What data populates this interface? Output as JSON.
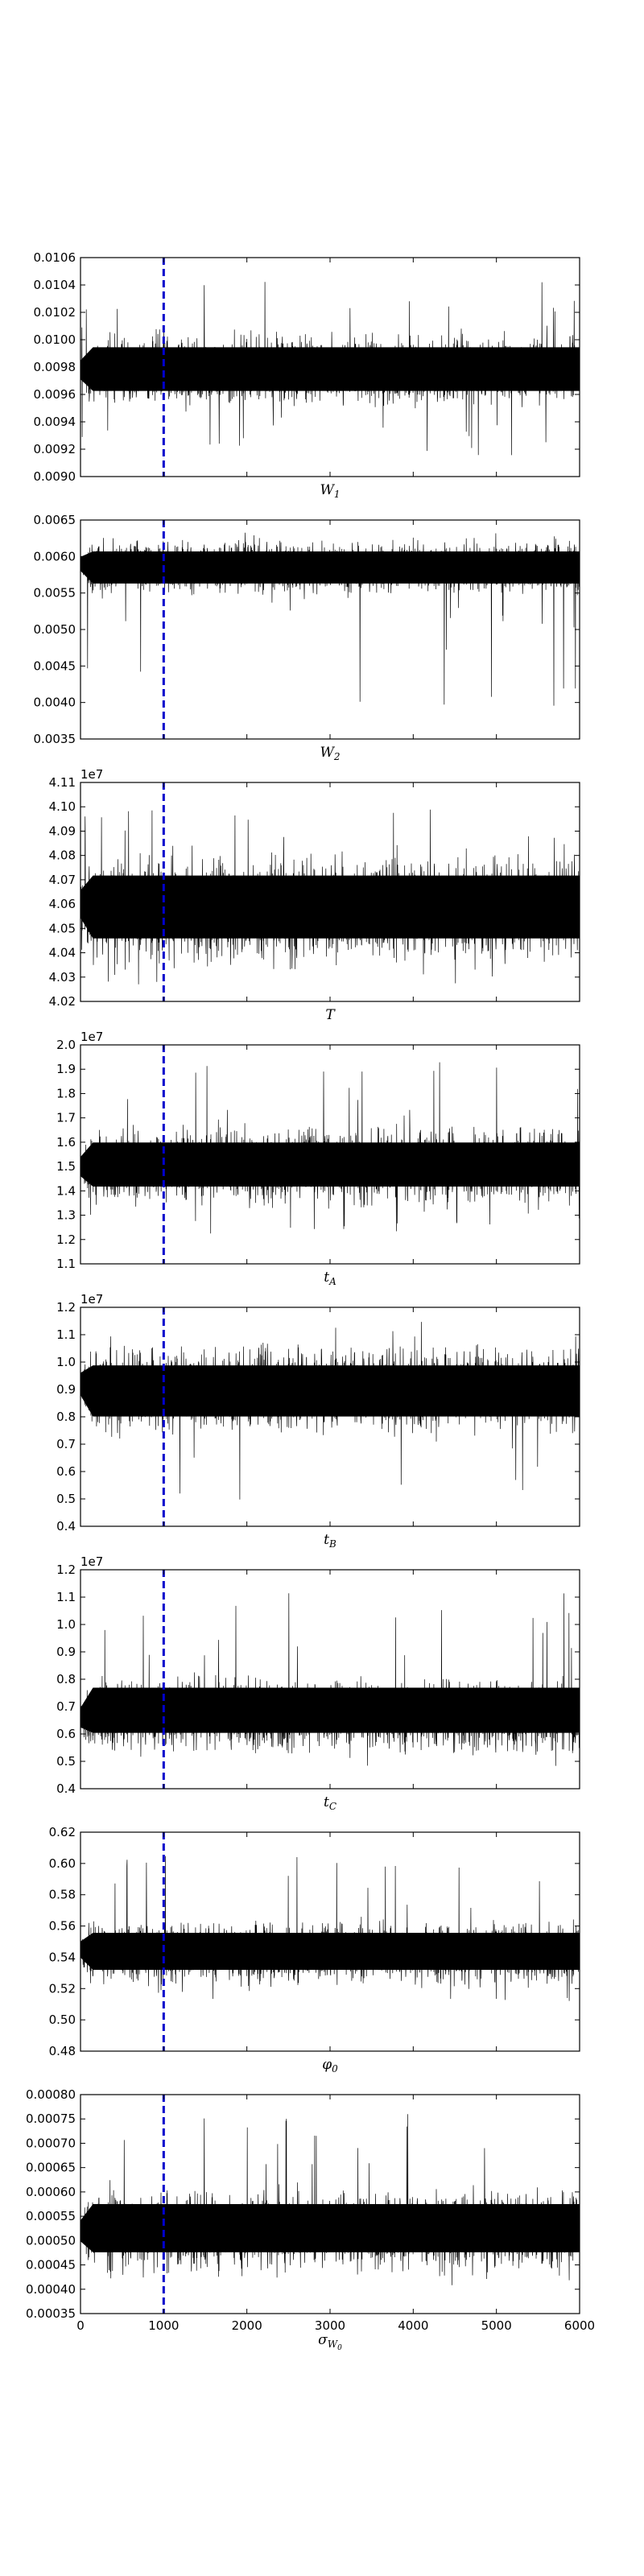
{
  "chart_data": [
    {
      "type": "line",
      "xlabel": "W_1",
      "xlabel_main": "W",
      "xlabel_sub": "1",
      "offset": "",
      "xlim": [
        0,
        6000
      ],
      "ylim": [
        0.009,
        0.0106
      ],
      "yticks": [
        "0.0090",
        "0.0092",
        "0.0094",
        "0.0096",
        "0.0098",
        "0.0100",
        "0.0102",
        "0.0104",
        "0.0106"
      ],
      "burn_in_x": 1000,
      "trace": {
        "mean": 0.00978,
        "low": 0.0095,
        "high": 0.01008,
        "start": 0.00978,
        "outlier_low": 0.00915,
        "outlier_high": 0.01045
      }
    },
    {
      "type": "line",
      "xlabel": "W_2",
      "xlabel_main": "W",
      "xlabel_sub": "2",
      "offset": "",
      "xlim": [
        0,
        6000
      ],
      "ylim": [
        0.0035,
        0.0065
      ],
      "yticks": [
        "0.0035",
        "0.0040",
        "0.0045",
        "0.0050",
        "0.0055",
        "0.0060",
        "0.0065"
      ],
      "burn_in_x": 1000,
      "trace": {
        "mean": 0.00585,
        "low": 0.00545,
        "high": 0.00625,
        "start": 0.0059,
        "outlier_low": 0.00395,
        "outlier_high": 0.00635
      }
    },
    {
      "type": "line",
      "xlabel": "T",
      "xlabel_main": "T",
      "xlabel_sub": "",
      "offset": "1e7",
      "xlim": [
        0,
        6000
      ],
      "ylim": [
        4.02,
        4.11
      ],
      "yticks": [
        "4.02",
        "4.03",
        "4.04",
        "4.05",
        "4.06",
        "4.07",
        "4.08",
        "4.09",
        "4.10",
        "4.11"
      ],
      "burn_in_x": 1000,
      "trace": {
        "mean": 4.058,
        "low": 4.036,
        "high": 4.083,
        "start": 4.06,
        "outlier_low": 4.027,
        "outlier_high": 4.1
      }
    },
    {
      "type": "line",
      "xlabel": "t_A",
      "xlabel_main": "t",
      "xlabel_sub": "A",
      "offset": "1e7",
      "xlim": [
        0,
        6000
      ],
      "ylim": [
        1.1,
        2.0
      ],
      "yticks": [
        "1.1",
        "1.2",
        "1.3",
        "1.4",
        "1.5",
        "1.6",
        "1.7",
        "1.8",
        "1.9",
        "2.0"
      ],
      "burn_in_x": 1000,
      "trace": {
        "mean": 1.5,
        "low": 1.35,
        "high": 1.68,
        "start": 1.5,
        "outlier_low": 1.22,
        "outlier_high": 1.93
      }
    },
    {
      "type": "line",
      "xlabel": "t_B",
      "xlabel_main": "t",
      "xlabel_sub": "B",
      "offset": "1e7",
      "xlim": [
        0,
        6000
      ],
      "ylim": [
        0.4,
        1.2
      ],
      "yticks": [
        "0.4",
        "0.5",
        "0.6",
        "0.7",
        "0.8",
        "0.9",
        "1.0",
        "1.1",
        "1.2"
      ],
      "burn_in_x": 1000,
      "trace": {
        "mean": 0.9,
        "low": 0.72,
        "high": 1.06,
        "start": 0.92,
        "outlier_low": 0.47,
        "outlier_high": 1.15
      }
    },
    {
      "type": "line",
      "xlabel": "t_C",
      "xlabel_main": "t",
      "xlabel_sub": "C",
      "offset": "1e7",
      "xlim": [
        0,
        6000
      ],
      "ylim": [
        0.4,
        1.2
      ],
      "yticks": [
        "0.4",
        "0.5",
        "0.6",
        "0.7",
        "0.8",
        "0.9",
        "1.0",
        "1.1",
        "1.2"
      ],
      "burn_in_x": 1000,
      "trace": {
        "mean": 0.67,
        "low": 0.55,
        "high": 0.85,
        "start": 0.66,
        "outlier_low": 0.46,
        "outlier_high": 1.12
      }
    },
    {
      "type": "line",
      "xlabel": "φ_0",
      "xlabel_main": "φ",
      "xlabel_sub": "0",
      "offset": "",
      "xlim": [
        0,
        6000
      ],
      "ylim": [
        0.48,
        0.62
      ],
      "yticks": [
        "0.48",
        "0.50",
        "0.52",
        "0.54",
        "0.56",
        "0.58",
        "0.60",
        "0.62"
      ],
      "burn_in_x": 1000,
      "trace": {
        "mean": 0.543,
        "low": 0.523,
        "high": 0.566,
        "start": 0.545,
        "outlier_low": 0.512,
        "outlier_high": 0.605
      }
    },
    {
      "type": "line",
      "xlabel": "σ_{W_0}",
      "xlabel_main": "σ",
      "xlabel_sub": "W",
      "xlabel_subsub": "0",
      "offset": "",
      "xlim": [
        0,
        6000
      ],
      "ylim": [
        0.00035,
        0.0008
      ],
      "yticks": [
        "0.00035",
        "0.00040",
        "0.00045",
        "0.00050",
        "0.00055",
        "0.00060",
        "0.00065",
        "0.00070",
        "0.00075",
        "0.00080"
      ],
      "xticks": [
        "0",
        "1000",
        "2000",
        "3000",
        "4000",
        "5000",
        "6000"
      ],
      "burn_in_x": 1000,
      "trace": {
        "mean": 0.00052,
        "low": 0.00044,
        "high": 0.00062,
        "start": 0.00052,
        "outlier_low": 0.0004,
        "outlier_high": 0.00076
      }
    }
  ],
  "colors": {
    "trace": "#000000",
    "burn_in_line": "#0000cc",
    "axes": "#000000",
    "background": "#ffffff"
  }
}
